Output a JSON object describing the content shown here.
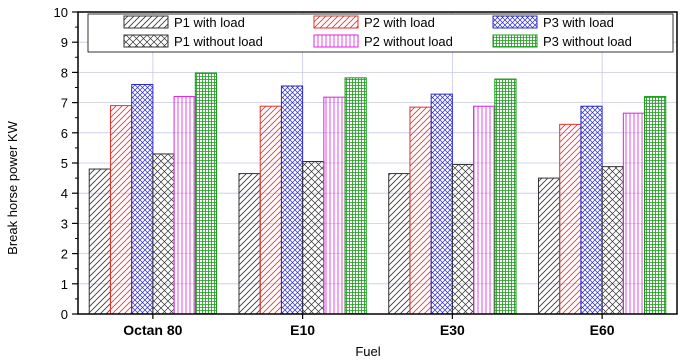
{
  "chart_data": {
    "type": "bar",
    "title": "",
    "xlabel": "Fuel",
    "ylabel": "Break horse power KW",
    "ylim": [
      0,
      10
    ],
    "y_ticks": [
      0,
      1,
      2,
      3,
      4,
      5,
      6,
      7,
      8,
      9,
      10
    ],
    "grid": true,
    "legend_position": "top",
    "categories": [
      "Octan 80",
      "E10",
      "E30",
      "E60"
    ],
    "series": [
      {
        "name": "P1 with load",
        "values": [
          4.8,
          4.65,
          4.65,
          4.5
        ],
        "color": "#333333",
        "pattern": "diag-right"
      },
      {
        "name": "P2 with load",
        "values": [
          6.9,
          6.88,
          6.85,
          6.28
        ],
        "color": "#e8302a",
        "pattern": "diag-right"
      },
      {
        "name": "P3 with load",
        "values": [
          7.6,
          7.55,
          7.28,
          6.88
        ],
        "color": "#2a2ad0",
        "pattern": "diag-cross"
      },
      {
        "name": "P1 without load",
        "values": [
          5.3,
          5.05,
          4.95,
          4.88
        ],
        "color": "#333333",
        "pattern": "diag-cross"
      },
      {
        "name": "P2 without load",
        "values": [
          7.2,
          7.18,
          6.88,
          6.65
        ],
        "color": "#e020e0",
        "pattern": "vertical"
      },
      {
        "name": "P3 without load",
        "values": [
          7.98,
          7.82,
          7.78,
          7.2
        ],
        "color": "#169a16",
        "pattern": "grid"
      }
    ]
  }
}
